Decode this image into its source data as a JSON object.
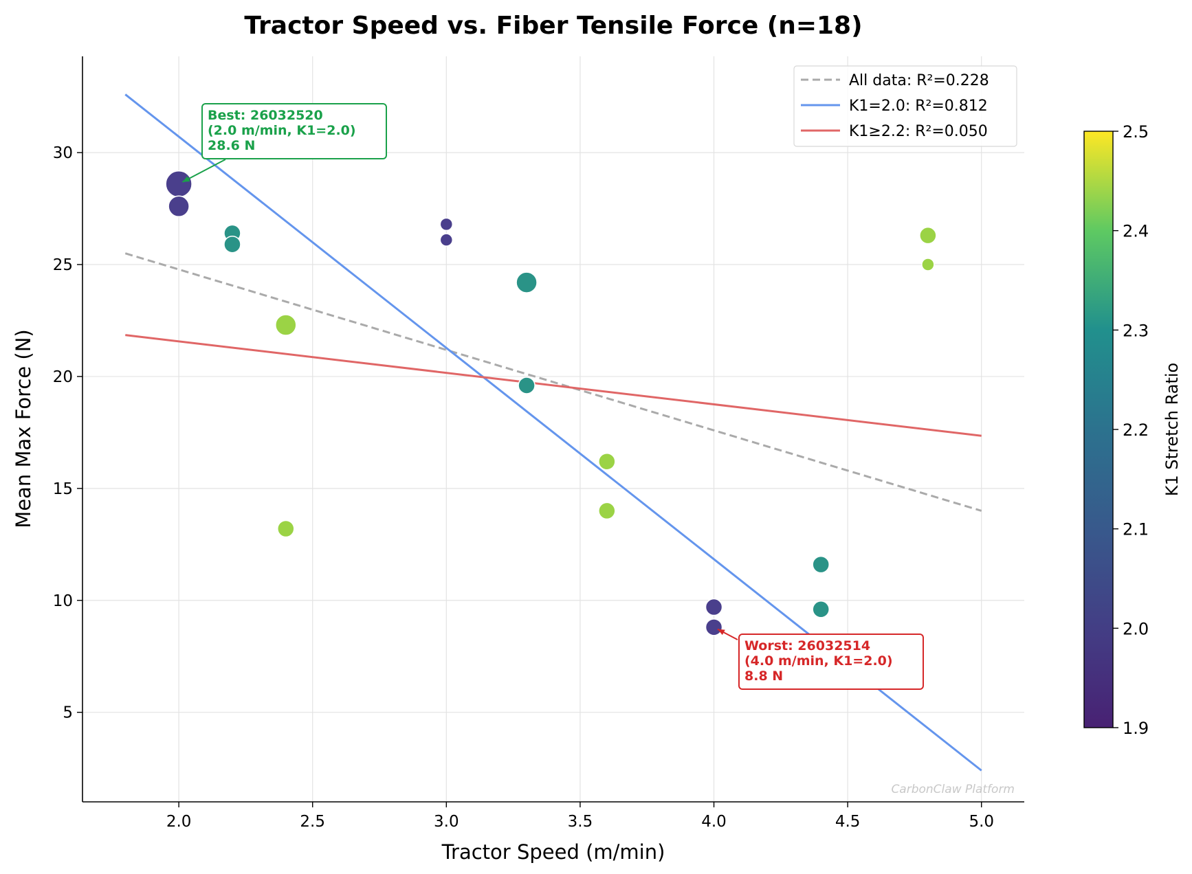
{
  "chart_data": {
    "type": "scatter",
    "title": "Tractor Speed vs. Fiber Tensile Force (n=18)",
    "xlabel": "Tractor Speed (m/min)",
    "ylabel": "Mean Max Force (N)",
    "xlim": [
      1.64,
      5.16
    ],
    "ylim": [
      1.0,
      34.3
    ],
    "xticks": [
      2.0,
      2.5,
      3.0,
      3.5,
      4.0,
      4.5,
      5.0
    ],
    "xtick_labels": [
      "2.0",
      "2.5",
      "3.0",
      "3.5",
      "4.0",
      "4.5",
      "5.0"
    ],
    "yticks": [
      5,
      10,
      15,
      20,
      25,
      30
    ],
    "ytick_labels": [
      "5",
      "10",
      "15",
      "20",
      "25",
      "30"
    ],
    "grid": true,
    "legend_position": "top-right",
    "points": [
      {
        "x": 2.0,
        "y": 28.6,
        "k1": 2.0,
        "size": 3
      },
      {
        "x": 2.0,
        "y": 27.6,
        "k1": 2.0,
        "size": 2
      },
      {
        "x": 2.2,
        "y": 26.4,
        "k1": 2.2,
        "size": 1
      },
      {
        "x": 2.2,
        "y": 25.9,
        "k1": 2.2,
        "size": 1
      },
      {
        "x": 2.4,
        "y": 22.3,
        "k1": 2.4,
        "size": 2
      },
      {
        "x": 2.4,
        "y": 13.2,
        "k1": 2.4,
        "size": 1
      },
      {
        "x": 3.0,
        "y": 26.8,
        "k1": 2.0,
        "size": 0
      },
      {
        "x": 3.0,
        "y": 26.1,
        "k1": 2.0,
        "size": 0
      },
      {
        "x": 3.3,
        "y": 24.2,
        "k1": 2.2,
        "size": 2
      },
      {
        "x": 3.3,
        "y": 19.6,
        "k1": 2.2,
        "size": 1
      },
      {
        "x": 3.6,
        "y": 16.2,
        "k1": 2.4,
        "size": 1
      },
      {
        "x": 3.6,
        "y": 14.0,
        "k1": 2.4,
        "size": 1
      },
      {
        "x": 4.0,
        "y": 9.7,
        "k1": 2.0,
        "size": 1
      },
      {
        "x": 4.0,
        "y": 8.8,
        "k1": 2.0,
        "size": 1
      },
      {
        "x": 4.4,
        "y": 11.6,
        "k1": 2.2,
        "size": 1
      },
      {
        "x": 4.4,
        "y": 9.6,
        "k1": 2.2,
        "size": 1
      },
      {
        "x": 4.8,
        "y": 26.3,
        "k1": 2.4,
        "size": 1
      },
      {
        "x": 4.8,
        "y": 25.0,
        "k1": 2.4,
        "size": 0
      }
    ],
    "fit_lines": [
      {
        "name": "All data: R²=0.228",
        "x": [
          1.8,
          5.0
        ],
        "y": [
          25.5,
          14.0
        ],
        "color": "#aaaaaa",
        "dashed": true
      },
      {
        "name": "K1=2.0: R²=0.812",
        "x": [
          1.8,
          5.0
        ],
        "y": [
          32.6,
          2.4
        ],
        "color": "#6495ed",
        "dashed": false
      },
      {
        "name": "K1≥2.2: R²=0.050",
        "x": [
          1.8,
          5.0
        ],
        "y": [
          21.85,
          17.35
        ],
        "color": "#e06666",
        "dashed": false
      }
    ],
    "colorbar": {
      "label": "K1 Stretch Ratio",
      "range": [
        1.9,
        2.5
      ],
      "ticks": [
        1.9,
        2.0,
        2.1,
        2.2,
        2.3,
        2.4,
        2.5
      ],
      "tick_labels": [
        "1.9",
        "2.0",
        "2.1",
        "2.2",
        "2.3",
        "2.4",
        "2.5"
      ]
    },
    "annotations": [
      {
        "kind": "best",
        "lines": [
          "Best: 26032520",
          "(2.0 m/min, K1=2.0)",
          "28.6 N"
        ],
        "point": {
          "x": 2.0,
          "y": 28.6
        },
        "color": "#1aa14a"
      },
      {
        "kind": "worst",
        "lines": [
          "Worst: 26032514",
          "(4.0 m/min, K1=2.0)",
          "8.8 N"
        ],
        "point": {
          "x": 4.0,
          "y": 8.8
        },
        "color": "#d62728"
      }
    ],
    "watermark": "CarbonClaw Platform"
  }
}
